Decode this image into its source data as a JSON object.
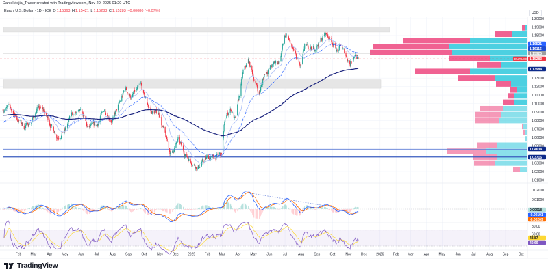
{
  "header": {
    "attribution": "DanielMejia_Trader created with TradingView.com, Nov 20, 2025 01:20 UTC",
    "symbol": "Euro / U.S. Dollar · 1D · ICE",
    "o_label": "O",
    "o": "1.15363",
    "h_label": "H",
    "h": "1.15421",
    "l_label": "L",
    "l": "1.15283",
    "c_label": "C",
    "c": "1.15283",
    "change": "−0.00080 (−0.07%)"
  },
  "currency": "USD",
  "logo": "TradingView",
  "colors": {
    "up": "#26a69a",
    "down": "#f23645",
    "ema_fast": "#a9bdf5",
    "ema_mid": "#2962ff",
    "ema_slow": "#1a237e",
    "vp_up": "#4dd0e1",
    "vp_down": "#f06292",
    "macd": "#2962ff",
    "signal": "#ff6d00",
    "rsi": "#7e57c2",
    "rsi_ma": "#fdd835"
  },
  "chart_data": {
    "type": "candlestick",
    "symbol": "EURUSD",
    "interval": "1D",
    "grid": true,
    "price_axis": {
      "range": [
        1.005,
        1.205
      ],
      "ticks": [
        "1.20000",
        "1.19000",
        "1.18000",
        "1.13000",
        "1.12000",
        "1.11000",
        "1.10000",
        "1.09000",
        "1.08000",
        "1.07000",
        "1.06000",
        "1.05000",
        "1.03000",
        "1.02000",
        "1.01000"
      ]
    },
    "time_axis": {
      "ticks": [
        {
          "label": "Feb",
          "date": "2024-02-01"
        },
        {
          "label": "Mar",
          "date": "2024-03-01"
        },
        {
          "label": "Apr",
          "date": "2024-04-01"
        },
        {
          "label": "May",
          "date": "2024-05-01"
        },
        {
          "label": "Jun",
          "date": "2024-06-01"
        },
        {
          "label": "Jul",
          "date": "2024-07-01"
        },
        {
          "label": "Aug",
          "date": "2024-08-01"
        },
        {
          "label": "Sep",
          "date": "2024-09-01"
        },
        {
          "label": "Oct",
          "date": "2024-10-01"
        },
        {
          "label": "Nov",
          "date": "2024-11-01"
        },
        {
          "label": "Dec",
          "date": "2024-12-01"
        },
        {
          "label": "2025",
          "date": "2025-01-01"
        },
        {
          "label": "Feb",
          "date": "2025-02-01"
        },
        {
          "label": "Mar",
          "date": "2025-03-01"
        },
        {
          "label": "Apr",
          "date": "2025-04-01"
        },
        {
          "label": "May",
          "date": "2025-05-01"
        },
        {
          "label": "Jun",
          "date": "2025-06-01"
        },
        {
          "label": "Jul",
          "date": "2025-07-01"
        },
        {
          "label": "Aug",
          "date": "2025-08-01"
        },
        {
          "label": "Sep",
          "date": "2025-09-01"
        },
        {
          "label": "Oct",
          "date": "2025-10-01"
        },
        {
          "label": "Nov",
          "date": "2025-11-01"
        },
        {
          "label": "Dec",
          "date": "2025-12-01"
        },
        {
          "label": "2026",
          "date": "2026-01-01"
        },
        {
          "label": "Feb",
          "date": "2026-02-01"
        },
        {
          "label": "Mar",
          "date": "2026-03-01"
        },
        {
          "label": "Apr",
          "date": "2026-04-01"
        },
        {
          "label": "May",
          "date": "2026-05-01"
        },
        {
          "label": "Jun",
          "date": "2026-06-01"
        },
        {
          "label": "Jul",
          "date": "2026-07-01"
        },
        {
          "label": "Aug",
          "date": "2026-08-01"
        },
        {
          "label": "Sep",
          "date": "2026-09-01"
        },
        {
          "label": "Oct",
          "date": "2026-10-01"
        }
      ]
    },
    "close_path": [
      [
        "2024-01-02",
        1.094
      ],
      [
        "2024-01-15",
        1.095
      ],
      [
        "2024-02-01",
        1.08
      ],
      [
        "2024-02-14",
        1.072
      ],
      [
        "2024-03-01",
        1.083
      ],
      [
        "2024-03-08",
        1.094
      ],
      [
        "2024-03-20",
        1.092
      ],
      [
        "2024-04-01",
        1.078
      ],
      [
        "2024-04-16",
        1.062
      ],
      [
        "2024-05-01",
        1.068
      ],
      [
        "2024-05-15",
        1.088
      ],
      [
        "2024-06-03",
        1.088
      ],
      [
        "2024-06-14",
        1.07
      ],
      [
        "2024-07-01",
        1.074
      ],
      [
        "2024-07-17",
        1.093
      ],
      [
        "2024-08-01",
        1.08
      ],
      [
        "2024-08-15",
        1.1
      ],
      [
        "2024-08-26",
        1.118
      ],
      [
        "2024-09-06",
        1.108
      ],
      [
        "2024-09-25",
        1.12
      ],
      [
        "2024-10-01",
        1.108
      ],
      [
        "2024-10-15",
        1.09
      ],
      [
        "2024-10-31",
        1.088
      ],
      [
        "2024-11-06",
        1.072
      ],
      [
        "2024-11-22",
        1.04
      ],
      [
        "2024-12-06",
        1.056
      ],
      [
        "2024-12-20",
        1.04
      ],
      [
        "2025-01-13",
        1.025
      ],
      [
        "2025-01-31",
        1.036
      ],
      [
        "2025-02-12",
        1.036
      ],
      [
        "2025-02-28",
        1.04
      ],
      [
        "2025-03-07",
        1.083
      ],
      [
        "2025-03-18",
        1.094
      ],
      [
        "2025-03-27",
        1.08
      ],
      [
        "2025-04-11",
        1.136
      ],
      [
        "2025-04-21",
        1.15
      ],
      [
        "2025-05-02",
        1.13
      ],
      [
        "2025-05-12",
        1.112
      ],
      [
        "2025-05-23",
        1.136
      ],
      [
        "2025-06-05",
        1.144
      ],
      [
        "2025-06-20",
        1.15
      ],
      [
        "2025-07-01",
        1.18
      ],
      [
        "2025-07-11",
        1.17
      ],
      [
        "2025-07-31",
        1.142
      ],
      [
        "2025-08-08",
        1.166
      ],
      [
        "2025-08-21",
        1.161
      ],
      [
        "2025-09-05",
        1.172
      ],
      [
        "2025-09-17",
        1.182
      ],
      [
        "2025-10-01",
        1.173
      ],
      [
        "2025-10-10",
        1.162
      ],
      [
        "2025-10-17",
        1.167
      ],
      [
        "2025-11-04",
        1.148
      ],
      [
        "2025-11-13",
        1.159
      ],
      [
        "2025-11-20",
        1.15283
      ]
    ],
    "last_bar": {
      "open": 1.15363,
      "high": 1.15421,
      "low": 1.15283,
      "close": 1.15283
    },
    "zones": [
      {
        "from": 1.184,
        "to": 1.19
      },
      {
        "from": 1.118,
        "to": 1.128
      }
    ],
    "levels": [
      {
        "price": 1.15925,
        "color": "#9e9e9e"
      },
      {
        "price": 1.04634,
        "color": "#5b7bd5"
      },
      {
        "price": 1.03716,
        "color": "#3a5bbf"
      }
    ],
    "price_labels": [
      {
        "text": "1.16521",
        "value": 1.16521,
        "bg": "#2962ff"
      },
      {
        "text": "1.16116",
        "value": 1.16116,
        "bg": "#1e4bd2"
      },
      {
        "text": "1.15925",
        "value": 1.15925,
        "bg": "#9e9e9e"
      },
      {
        "text": "1.15283",
        "value": 1.15283,
        "bg": "#f23645",
        "tag": "EURUSD"
      },
      {
        "text": "1.13984",
        "value": 1.13984,
        "bg": "#0d2a8a"
      },
      {
        "text": "1.04634",
        "value": 1.04634,
        "bg": "#0d2a8a"
      },
      {
        "text": "1.03716",
        "value": 1.03716,
        "bg": "#0d2a8a"
      }
    ],
    "volume_profile": [
      {
        "price": 1.189,
        "up": 3,
        "down": 4,
        "value_area": true
      },
      {
        "price": 1.1815,
        "up": 22,
        "down": 25,
        "value_area": true
      },
      {
        "price": 1.174,
        "up": 83,
        "down": 97,
        "value_area": true
      },
      {
        "price": 1.167,
        "up": 113,
        "down": 112,
        "value_area": true
      },
      {
        "price": 1.16,
        "up": 109,
        "down": 120,
        "value_area": true
      },
      {
        "price": 1.153,
        "up": 54,
        "down": 60,
        "value_area": true
      },
      {
        "price": 1.1455,
        "up": 38,
        "down": 34,
        "value_area": true
      },
      {
        "price": 1.1378,
        "up": 83,
        "down": 80,
        "value_area": true
      },
      {
        "price": 1.13,
        "up": 47,
        "down": 53,
        "value_area": true
      },
      {
        "price": 1.123,
        "up": 23,
        "down": 22,
        "value_area": true
      },
      {
        "price": 1.116,
        "up": 14,
        "down": 10,
        "value_area": true
      },
      {
        "price": 1.109,
        "up": 19,
        "down": 9,
        "value_area": true
      },
      {
        "price": 1.1015,
        "up": 19,
        "down": 15,
        "value_area": true
      },
      {
        "price": 1.094,
        "up": 35,
        "down": 33,
        "value_area": false
      },
      {
        "price": 1.087,
        "up": 38,
        "down": 38,
        "value_area": false
      },
      {
        "price": 1.08,
        "up": 40,
        "down": 35,
        "value_area": false
      },
      {
        "price": 1.073,
        "up": 5,
        "down": 2,
        "value_area": false
      },
      {
        "price": 1.066,
        "up": 3,
        "down": 2,
        "value_area": false
      },
      {
        "price": 1.0585,
        "up": 2,
        "down": 1,
        "value_area": false
      },
      {
        "price": 1.051,
        "up": 43,
        "down": 30,
        "value_area": false
      },
      {
        "price": 1.044,
        "up": 59,
        "down": 58,
        "value_area": false
      },
      {
        "price": 1.037,
        "up": 44,
        "down": 35,
        "value_area": false
      },
      {
        "price": 1.03,
        "up": 47,
        "down": 30,
        "value_area": false
      },
      {
        "price": 1.0225,
        "up": 10,
        "down": 10,
        "value_area": false
      }
    ],
    "macd": {
      "ticks": [
        "0.02000",
        "0.01000"
      ],
      "labels": [
        {
          "text": "0.00018",
          "bg": "#b2dfdb",
          "fg": "#131722"
        },
        {
          "text": "-0.00191",
          "bg": "#2962ff",
          "fg": "#ffffff"
        },
        {
          "text": "-0.00209",
          "bg": "#ff6d00",
          "fg": "#ffffff"
        }
      ],
      "trendline": [
        [
          "2025-04-21",
          0.017
        ],
        [
          "2025-09-22",
          0.003
        ]
      ]
    },
    "rsi": {
      "ticks": [
        "80.00",
        "60.00"
      ],
      "bands": [
        70,
        50,
        30
      ],
      "labels": [
        {
          "text": "43.87",
          "bg": "#fdd835",
          "fg": "#131722"
        },
        {
          "text": "40.69",
          "bg": "#7e57c2",
          "fg": "#ffffff"
        }
      ]
    }
  }
}
